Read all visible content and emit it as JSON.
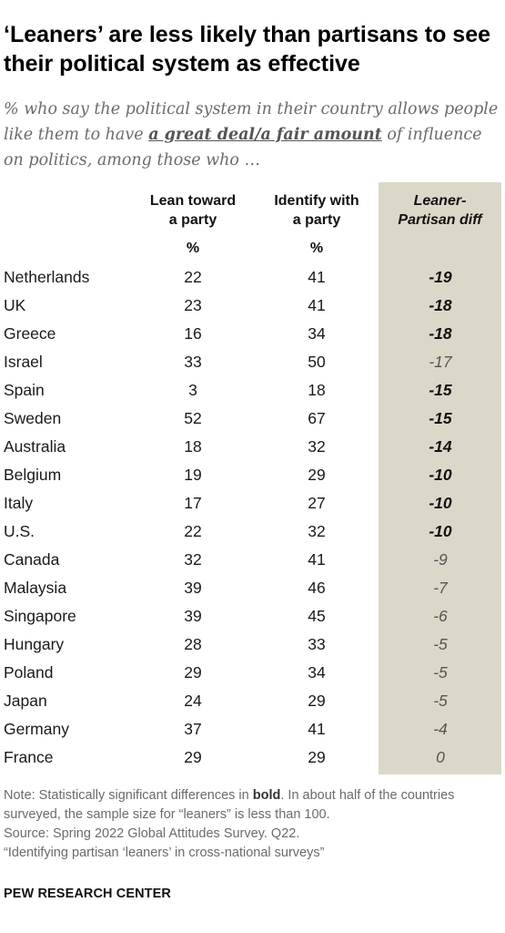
{
  "title": "‘Leaners’ are less likely than partisans to see their political system as effective",
  "subtitle": {
    "before": "% who say the political system in their country allows people like them to have ",
    "emphasis": "a great deal/a fair amount",
    "after": " of influence on politics, among those who …"
  },
  "chart_data": {
    "type": "table",
    "columns": [
      {
        "header_lines": [
          "Lean toward",
          "a party"
        ],
        "unit": "%"
      },
      {
        "header_lines": [
          "Identify with",
          "a party"
        ],
        "unit": "%"
      },
      {
        "header_lines": [
          "Leaner-",
          "Partisan diff"
        ],
        "unit": ""
      }
    ],
    "rows": [
      {
        "country": "Netherlands",
        "lean": "22",
        "identify": "41",
        "diff": "-19",
        "significant": true
      },
      {
        "country": "UK",
        "lean": "23",
        "identify": "41",
        "diff": "-18",
        "significant": true
      },
      {
        "country": "Greece",
        "lean": "16",
        "identify": "34",
        "diff": "-18",
        "significant": true
      },
      {
        "country": "Israel",
        "lean": "33",
        "identify": "50",
        "diff": "-17",
        "significant": false
      },
      {
        "country": "Spain",
        "lean": "3",
        "identify": "18",
        "diff": "-15",
        "significant": true
      },
      {
        "country": "Sweden",
        "lean": "52",
        "identify": "67",
        "diff": "-15",
        "significant": true
      },
      {
        "country": "Australia",
        "lean": "18",
        "identify": "32",
        "diff": "-14",
        "significant": true
      },
      {
        "country": "Belgium",
        "lean": "19",
        "identify": "29",
        "diff": "-10",
        "significant": true
      },
      {
        "country": "Italy",
        "lean": "17",
        "identify": "27",
        "diff": "-10",
        "significant": true
      },
      {
        "country": "U.S.",
        "lean": "22",
        "identify": "32",
        "diff": "-10",
        "significant": true
      },
      {
        "country": "Canada",
        "lean": "32",
        "identify": "41",
        "diff": "-9",
        "significant": false
      },
      {
        "country": "Malaysia",
        "lean": "39",
        "identify": "46",
        "diff": "-7",
        "significant": false
      },
      {
        "country": "Singapore",
        "lean": "39",
        "identify": "45",
        "diff": "-6",
        "significant": false
      },
      {
        "country": "Hungary",
        "lean": "28",
        "identify": "33",
        "diff": "-5",
        "significant": false
      },
      {
        "country": "Poland",
        "lean": "29",
        "identify": "34",
        "diff": "-5",
        "significant": false
      },
      {
        "country": "Japan",
        "lean": "24",
        "identify": "29",
        "diff": "-5",
        "significant": false
      },
      {
        "country": "Germany",
        "lean": "37",
        "identify": "41",
        "diff": "-4",
        "significant": false
      },
      {
        "country": "France",
        "lean": "29",
        "identify": "29",
        "diff": "0",
        "significant": false
      }
    ],
    "diff_column_color": "#dcd8c9"
  },
  "footer": {
    "note_before": "Note: Statistically significant differences in ",
    "note_bold": "bold",
    "note_after": ". In about half of the countries surveyed, the sample size for “leaners” is less than 100.",
    "source": "Source: Spring 2022 Global Attitudes Survey. Q22.",
    "report": "“Identifying partisan ‘leaners’ in cross-national surveys”"
  },
  "brand": "PEW RESEARCH CENTER"
}
